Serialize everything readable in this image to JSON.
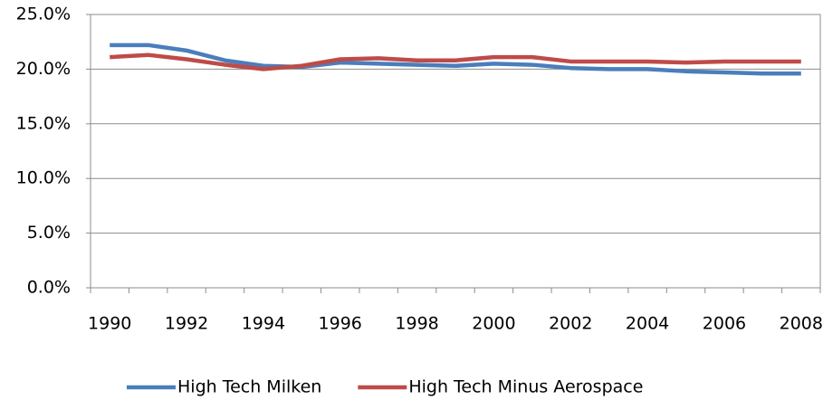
{
  "chart_data": {
    "type": "line",
    "categories": [
      "1990",
      null,
      "1992",
      null,
      "1994",
      null,
      "1996",
      null,
      "1998",
      null,
      "2000",
      null,
      "2002",
      null,
      "2004",
      null,
      "2006",
      null,
      "2008"
    ],
    "series": [
      {
        "name": "High Tech Milken",
        "color": "#4a7ebb",
        "values": [
          22.2,
          22.2,
          21.7,
          20.8,
          20.3,
          20.2,
          20.6,
          20.5,
          20.4,
          20.3,
          20.5,
          20.4,
          20.1,
          20.0,
          20.0,
          19.8,
          19.7,
          19.6,
          19.6
        ]
      },
      {
        "name": "High Tech Minus Aerospace",
        "color": "#be4b48",
        "values": [
          21.1,
          21.3,
          20.9,
          20.4,
          20.0,
          20.3,
          20.9,
          21.0,
          20.8,
          20.8,
          21.1,
          21.1,
          20.7,
          20.7,
          20.7,
          20.6,
          20.7,
          20.7,
          20.7
        ]
      }
    ],
    "ylim": [
      0,
      25
    ],
    "yticks": [
      {
        "value": 0,
        "label": "0.0%"
      },
      {
        "value": 5,
        "label": "5.0%"
      },
      {
        "value": 10,
        "label": "10.0%"
      },
      {
        "value": 15,
        "label": "15.0%"
      },
      {
        "value": 20,
        "label": "20.0%"
      },
      {
        "value": 25,
        "label": "25.0%"
      }
    ],
    "grid": true,
    "legend": "bottom"
  }
}
